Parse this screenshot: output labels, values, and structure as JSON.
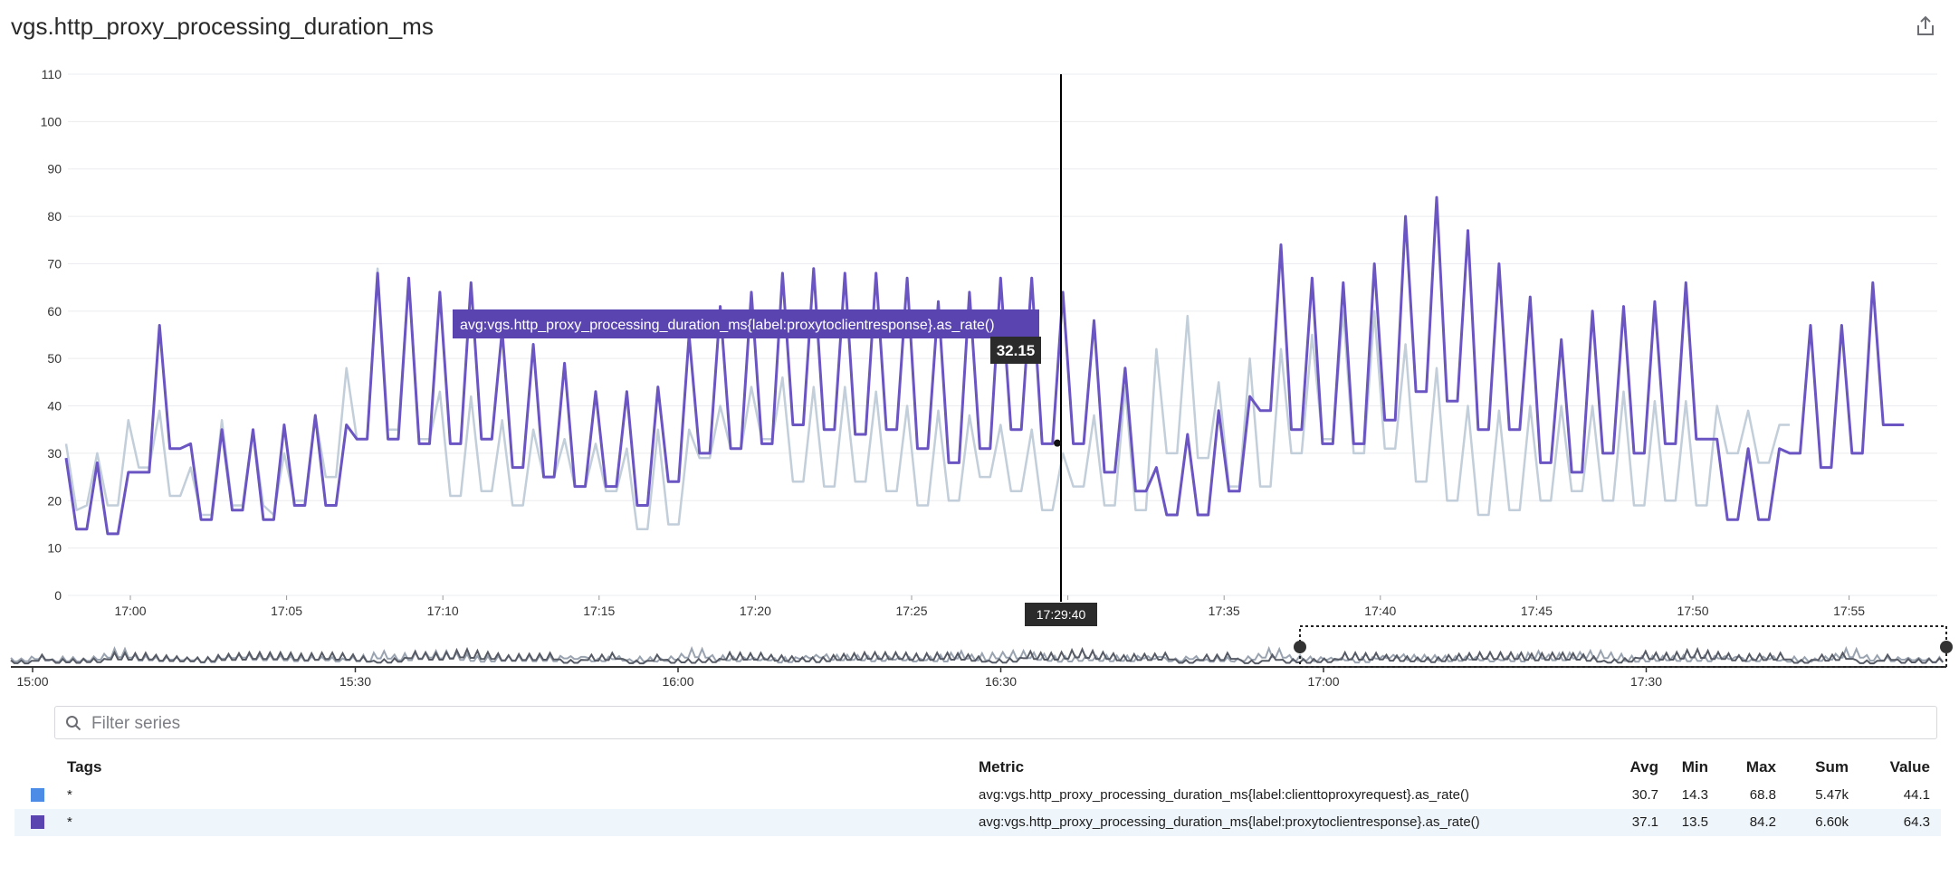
{
  "title": "vgs.http_proxy_processing_duration_ms",
  "share_icon": "share-export-icon",
  "colors": {
    "series_a": "#c2ced9",
    "series_b": "#6a55c2",
    "legend_a": "#4c8be6",
    "legend_b": "#5a45b0"
  },
  "chart_data": {
    "type": "line",
    "title": "vgs.http_proxy_processing_duration_ms",
    "xlabel": "",
    "ylabel": "",
    "ylim": [
      0,
      110
    ],
    "y_ticks": [
      "0",
      "10",
      "20",
      "30",
      "40",
      "50",
      "60",
      "70",
      "80",
      "90",
      "100",
      "110"
    ],
    "x_ticks": [
      "17:00",
      "17:05",
      "17:10",
      "17:15",
      "17:20",
      "17:25",
      "17:30",
      "17:35",
      "17:40",
      "17:45",
      "17:50",
      "17:55"
    ],
    "x_range_minutes": [
      "16:58",
      "17:58"
    ],
    "grid": true,
    "series": [
      {
        "name": "avg:vgs.http_proxy_processing_duration_ms{label:clienttoproxyrequest}.as_rate()",
        "values": [
          32,
          18,
          19,
          30,
          19,
          19,
          37,
          27,
          27,
          39,
          21,
          21,
          27,
          17,
          17,
          37,
          19,
          19,
          35,
          19,
          17,
          30,
          20,
          20,
          38,
          25,
          25,
          48,
          33,
          33,
          69,
          35,
          35,
          67,
          33,
          33,
          43,
          21,
          21,
          42,
          22,
          22,
          37,
          19,
          19,
          35,
          25,
          25,
          33,
          23,
          23,
          32,
          22,
          22,
          31,
          14,
          14,
          35,
          15,
          15,
          35,
          29,
          29,
          40,
          31,
          31,
          44,
          33,
          33,
          46,
          24,
          24,
          44,
          23,
          23,
          44,
          24,
          24,
          43,
          22,
          22,
          40,
          19,
          19,
          39,
          20,
          20,
          38,
          25,
          25,
          36,
          22,
          22,
          35,
          18,
          18,
          30,
          23,
          23,
          38,
          19,
          19,
          44,
          18,
          18,
          52,
          30,
          30,
          59,
          29,
          29,
          45,
          23,
          23,
          50,
          23,
          23,
          52,
          30,
          30,
          55,
          33,
          33,
          60,
          30,
          30,
          60,
          31,
          31,
          53,
          24,
          24,
          48,
          20,
          20,
          40,
          17,
          17,
          39,
          18,
          18,
          40,
          20,
          20,
          40,
          22,
          22,
          40,
          20,
          20,
          43,
          19,
          19,
          41,
          20,
          20,
          41,
          19,
          19,
          40,
          30,
          30,
          39,
          28,
          28,
          36,
          36
        ]
      },
      {
        "name": "avg:vgs.http_proxy_processing_duration_ms{label:proxytoclientresponse}.as_rate()",
        "values": [
          29,
          14,
          14,
          28,
          13,
          13,
          26,
          26,
          26,
          57,
          31,
          31,
          32,
          16,
          16,
          35,
          18,
          18,
          35,
          16,
          16,
          36,
          19,
          19,
          38,
          19,
          19,
          36,
          33,
          33,
          68,
          33,
          33,
          67,
          32,
          32,
          64,
          32,
          32,
          66,
          33,
          33,
          56,
          27,
          27,
          53,
          25,
          25,
          49,
          23,
          23,
          43,
          23,
          23,
          43,
          19,
          19,
          44,
          24,
          24,
          55,
          30,
          30,
          61,
          31,
          31,
          64,
          32,
          32,
          68,
          36,
          36,
          69,
          35,
          35,
          68,
          34,
          34,
          68,
          35,
          35,
          67,
          31,
          31,
          62,
          28,
          28,
          64,
          31,
          31,
          67,
          35,
          35,
          67,
          32,
          32,
          64,
          32,
          32,
          58,
          26,
          26,
          48,
          22,
          22,
          27,
          17,
          17,
          34,
          17,
          17,
          39,
          22,
          22,
          42,
          39,
          39,
          74,
          35,
          35,
          67,
          32,
          32,
          66,
          32,
          32,
          70,
          37,
          37,
          80,
          43,
          43,
          84,
          41,
          41,
          77,
          35,
          35,
          70,
          35,
          35,
          63,
          28,
          28,
          54,
          26,
          26,
          60,
          30,
          30,
          61,
          30,
          30,
          62,
          32,
          32,
          66,
          33,
          33,
          33,
          16,
          16,
          31,
          16,
          16,
          31,
          30,
          30,
          57,
          27,
          27,
          57,
          30,
          30,
          66,
          36,
          36,
          36
        ]
      }
    ],
    "hover": {
      "series_label": "avg:vgs.http_proxy_processing_duration_ms{label:proxytoclientresponse}.as_rate()",
      "value": "32.15",
      "time": "17:29:40"
    },
    "navigator": {
      "x_ticks": [
        "15:00",
        "15:30",
        "16:00",
        "16:30",
        "17:00",
        "17:30"
      ]
    }
  },
  "filter": {
    "placeholder": "Filter series"
  },
  "legend_table": {
    "headers": {
      "tags": "Tags",
      "metric": "Metric",
      "avg": "Avg",
      "min": "Min",
      "max": "Max",
      "sum": "Sum",
      "value": "Value"
    },
    "rows": [
      {
        "tags": "*",
        "metric": "avg:vgs.http_proxy_processing_duration_ms{label:clienttoproxyrequest}.as_rate()",
        "avg": "30.7",
        "min": "14.3",
        "max": "68.8",
        "sum": "5.47k",
        "value": "44.1"
      },
      {
        "tags": "*",
        "metric": "avg:vgs.http_proxy_processing_duration_ms{label:proxytoclientresponse}.as_rate()",
        "avg": "37.1",
        "min": "13.5",
        "max": "84.2",
        "sum": "6.60k",
        "value": "64.3"
      }
    ]
  }
}
